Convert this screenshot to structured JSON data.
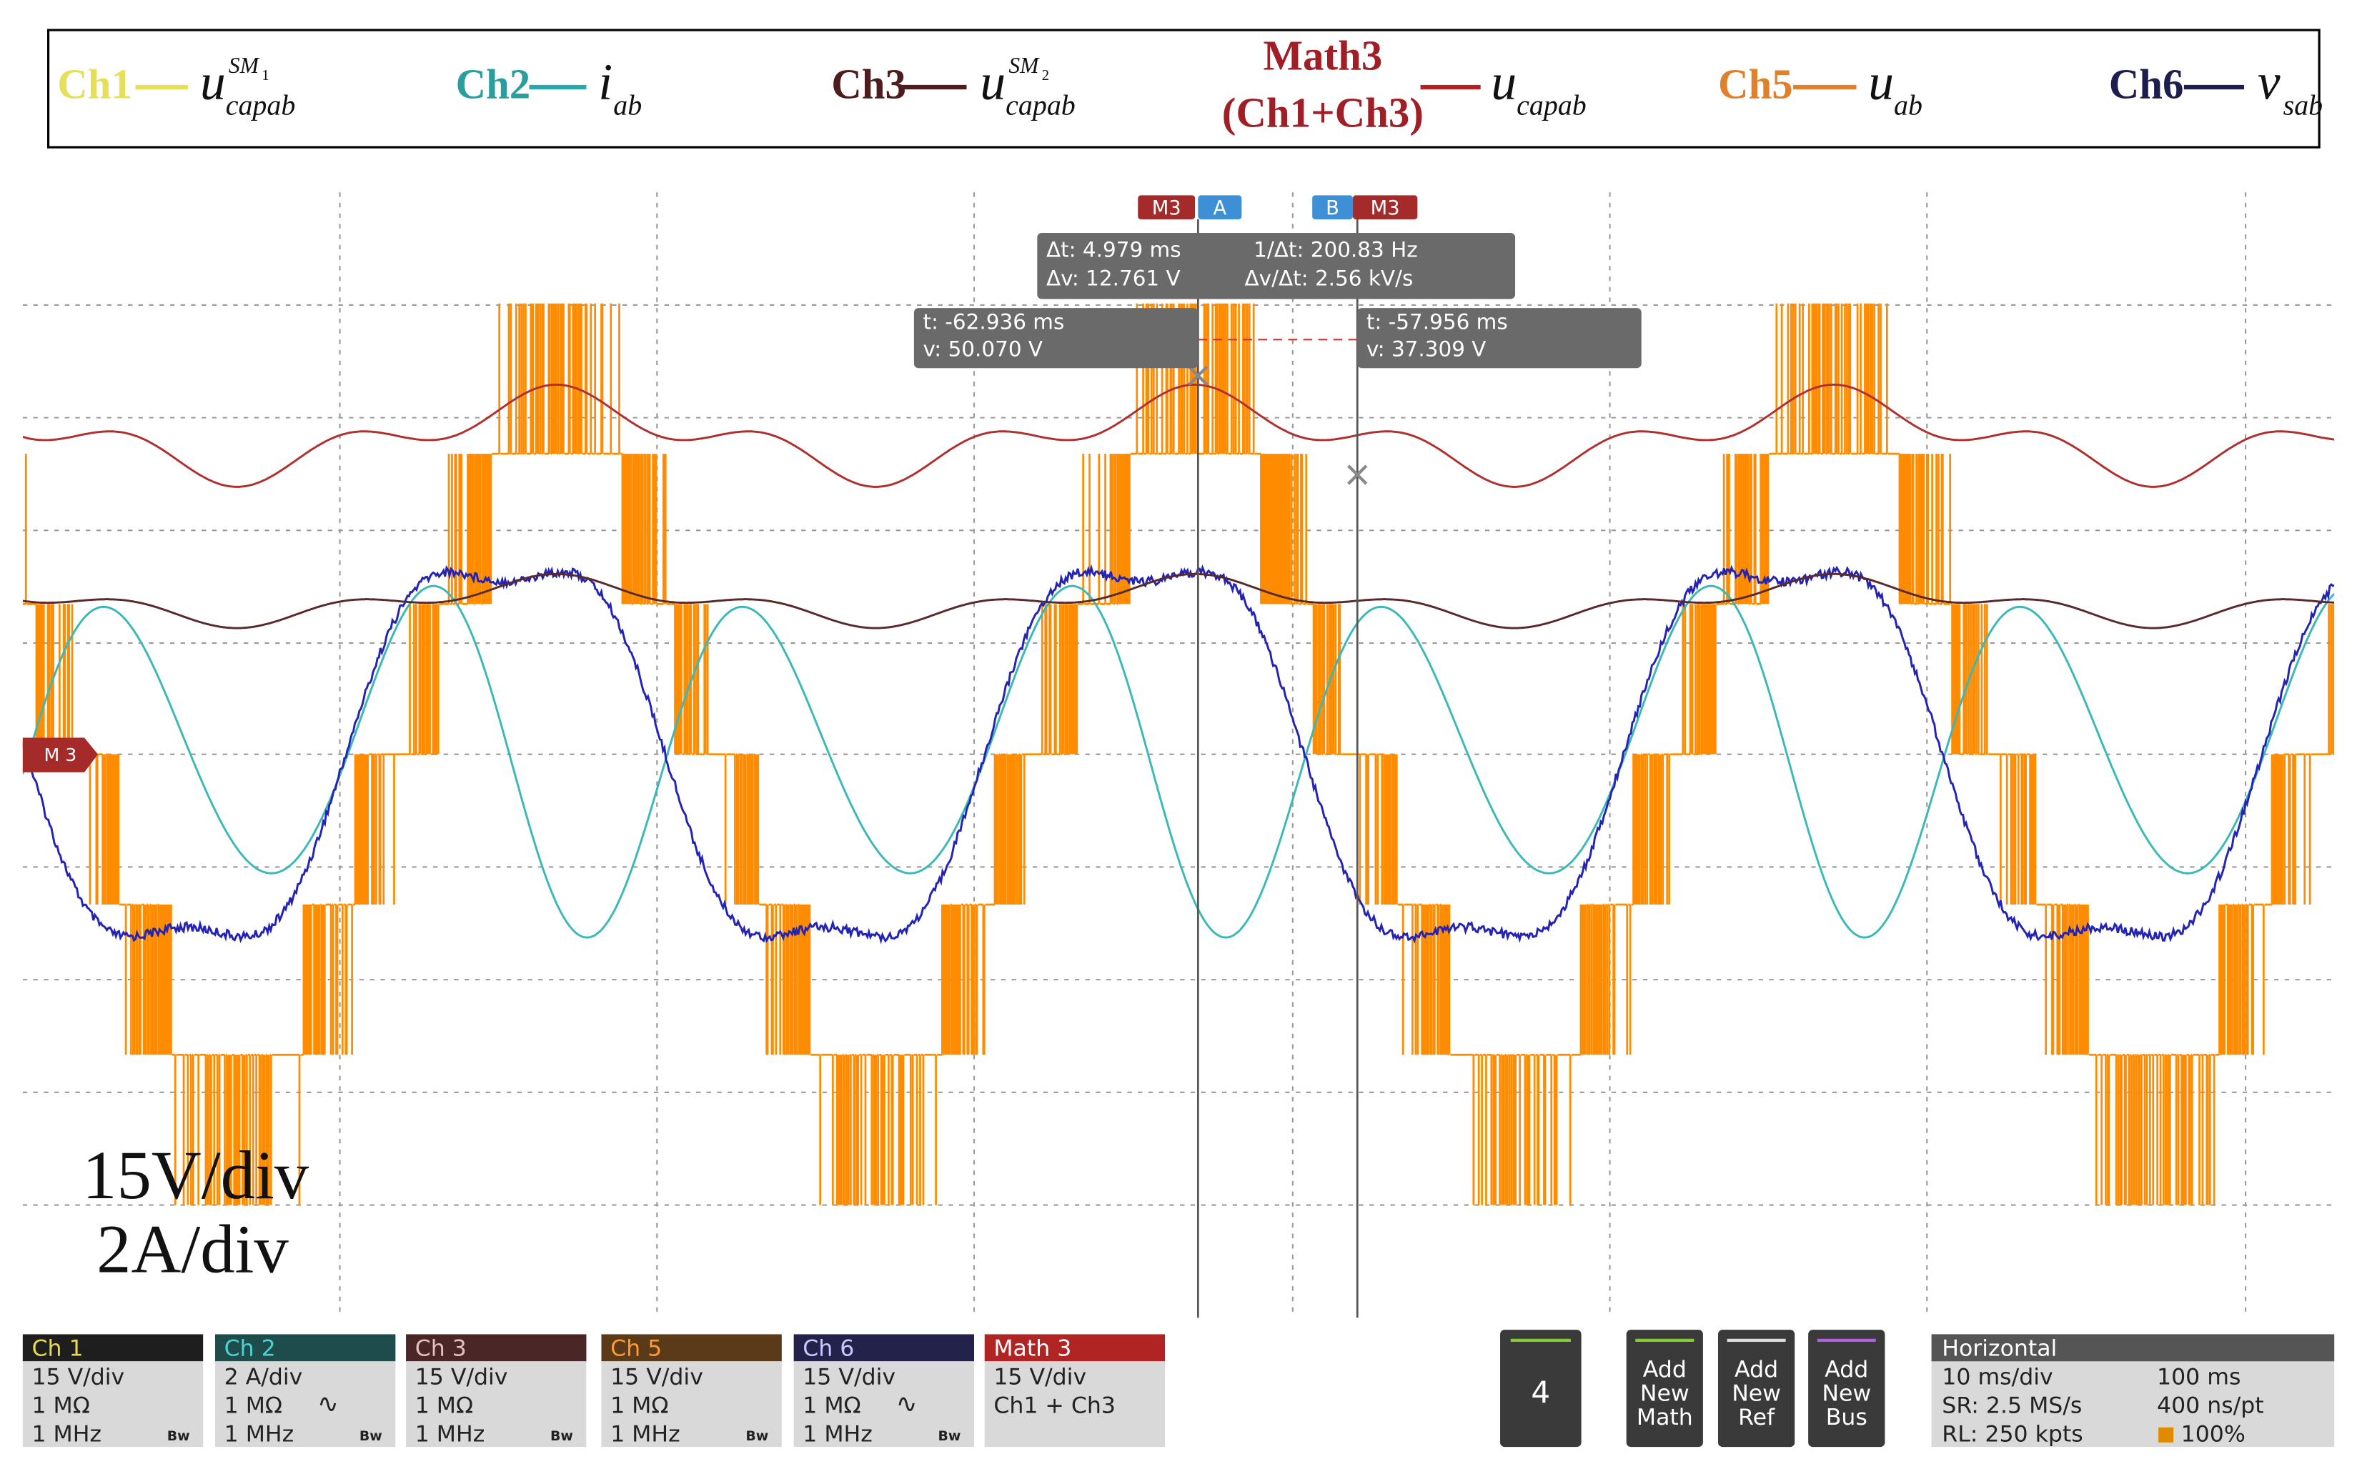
{
  "legend": [
    {
      "channel": "Ch1",
      "symbol": "u",
      "sup": "SM",
      "sup_sub": "1",
      "sub": "capab"
    },
    {
      "channel": "Ch2",
      "symbol": "i",
      "sub": "ab"
    },
    {
      "channel": "Ch3",
      "symbol": "u",
      "sup": "SM",
      "sup_sub": "2",
      "sub": "capab"
    },
    {
      "channel": "Math3",
      "channel_detail": "(Ch1+Ch3)",
      "symbol": "u",
      "sub": "capab"
    },
    {
      "channel": "Ch5",
      "symbol": "u",
      "sub": "ab"
    },
    {
      "channel": "Ch6",
      "symbol": "v",
      "sub": "sab"
    }
  ],
  "cursors": {
    "tabs": [
      "M3",
      "A",
      "B",
      "M3"
    ],
    "delta": [
      "Δt: 4.979 ms",
      "1/Δt: 200.83 Hz",
      "Δv: 12.761 V",
      "Δv/Δt: 2.56 kV/s"
    ],
    "a": [
      "t: -62.936 ms",
      "v: 50.070 V"
    ],
    "b": [
      "t: -57.956 ms",
      "v: 37.309 V"
    ]
  },
  "reference_marker": "M 3",
  "scale_note": [
    "15V/div",
    "2A/div"
  ],
  "channels": [
    {
      "name": "Ch 1",
      "lines": [
        "15 V/div",
        "1 MΩ",
        "1 MHz"
      ],
      "bw": "Bw"
    },
    {
      "name": "Ch 2",
      "lines": [
        "2 A/div",
        "1 MΩ",
        "1 MHz"
      ],
      "coupling": "∿",
      "bw": "Bw"
    },
    {
      "name": "Ch 3",
      "lines": [
        "15 V/div",
        "1 MΩ",
        "1 MHz"
      ],
      "bw": "Bw"
    },
    {
      "name": "Ch 5",
      "lines": [
        "15 V/div",
        "1 MΩ",
        "1 MHz"
      ],
      "bw": "Bw"
    },
    {
      "name": "Ch 6",
      "lines": [
        "15 V/div",
        "1 MΩ",
        "1 MHz"
      ],
      "coupling": "∿",
      "bw": "Bw"
    },
    {
      "name": "Math 3",
      "lines": [
        "15 V/div",
        "Ch1 + Ch3"
      ]
    }
  ],
  "buttons": {
    "count": "4",
    "add": [
      [
        "Add",
        "New",
        "Math"
      ],
      [
        "Add",
        "New",
        "Ref"
      ],
      [
        "Add",
        "New",
        "Bus"
      ]
    ]
  },
  "horizontal": {
    "title": "Horizontal",
    "rows": [
      [
        "10 ms/div",
        "100 ms"
      ],
      [
        "SR: 2.5 MS/s",
        "400 ns/pt"
      ],
      [
        "RL: 250 kpts",
        "100%"
      ]
    ]
  }
}
